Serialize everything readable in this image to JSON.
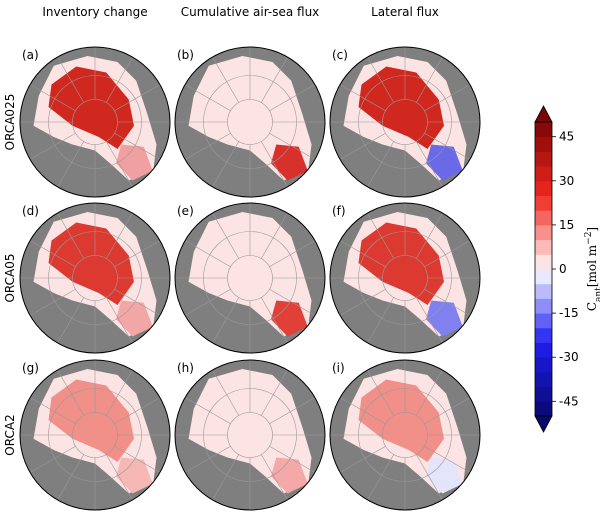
{
  "column_titles": [
    "Inventory change",
    "Cumulative air-sea flux",
    "Lateral flux"
  ],
  "row_labels": [
    "ORCA025",
    "ORCA05",
    "ORCA2"
  ],
  "panel_labels": [
    "(a)",
    "(b)",
    "(c)",
    "(d)",
    "(e)",
    "(f)",
    "(g)",
    "(h)",
    "(i)"
  ],
  "colorbar": {
    "label": "C",
    "label_subscript": "ant",
    "label_units": "[mol m",
    "label_exponent": "−2",
    "label_end": "]",
    "lim": [
      -50,
      50
    ],
    "ticks": [
      45,
      30,
      15,
      0,
      -15,
      -30,
      -45
    ]
  }
}
